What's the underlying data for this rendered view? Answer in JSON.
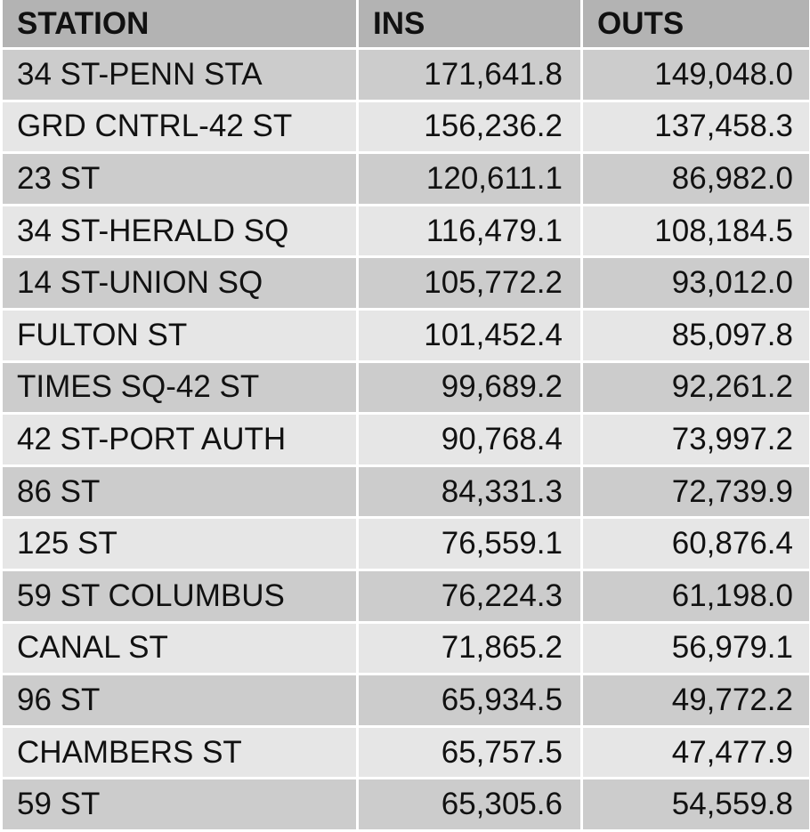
{
  "table": {
    "headers": {
      "station": "STATION",
      "ins": "INS",
      "outs": "OUTS"
    },
    "rows": [
      {
        "station": "34 ST-PENN STA",
        "ins": "171,641.8",
        "outs": "149,048.0"
      },
      {
        "station": "GRD CNTRL-42 ST",
        "ins": "156,236.2",
        "outs": "137,458.3"
      },
      {
        "station": "23 ST",
        "ins": "120,611.1",
        "outs": "86,982.0"
      },
      {
        "station": "34 ST-HERALD SQ",
        "ins": "116,479.1",
        "outs": "108,184.5"
      },
      {
        "station": "14 ST-UNION SQ",
        "ins": "105,772.2",
        "outs": "93,012.0"
      },
      {
        "station": "FULTON ST",
        "ins": "101,452.4",
        "outs": "85,097.8"
      },
      {
        "station": "TIMES SQ-42 ST",
        "ins": "99,689.2",
        "outs": "92,261.2"
      },
      {
        "station": "42 ST-PORT AUTH",
        "ins": "90,768.4",
        "outs": "73,997.2"
      },
      {
        "station": "86 ST",
        "ins": "84,331.3",
        "outs": "72,739.9"
      },
      {
        "station": "125 ST",
        "ins": "76,559.1",
        "outs": "60,876.4"
      },
      {
        "station": "59 ST COLUMBUS",
        "ins": "76,224.3",
        "outs": "61,198.0"
      },
      {
        "station": "CANAL ST",
        "ins": "71,865.2",
        "outs": "56,979.1"
      },
      {
        "station": "96 ST",
        "ins": "65,934.5",
        "outs": "49,772.2"
      },
      {
        "station": "CHAMBERS ST",
        "ins": "65,757.5",
        "outs": "47,477.9"
      },
      {
        "station": "59 ST",
        "ins": "65,305.6",
        "outs": "54,559.8"
      }
    ]
  },
  "colors": {
    "header_bg": "#b3b3b3",
    "row_dark_bg": "#cccccc",
    "row_light_bg": "#e6e6e6",
    "grid_line": "#ffffff",
    "text": "#111111"
  }
}
